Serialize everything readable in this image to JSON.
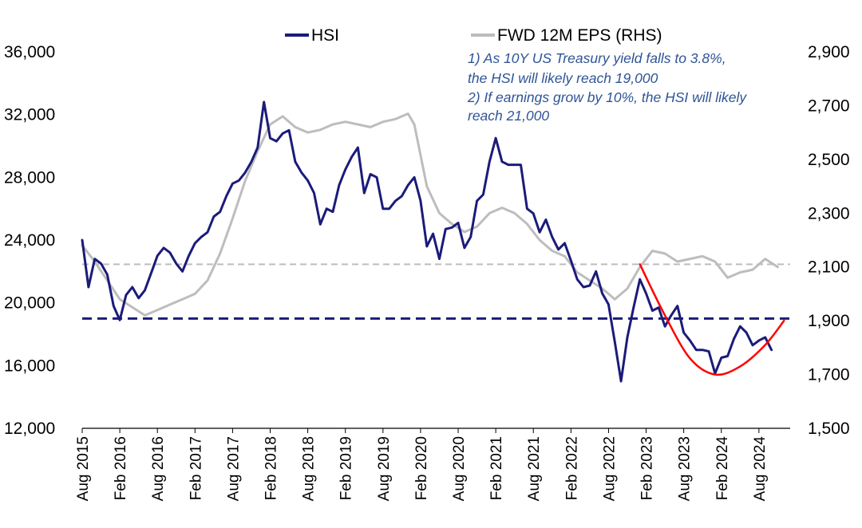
{
  "chart_data": {
    "type": "line",
    "title": "",
    "legend": {
      "placement": "top-center",
      "entries": [
        {
          "label": "HSI"
        },
        {
          "label": "FWD 12M EPS (RHS)"
        }
      ]
    },
    "left_axis": {
      "ylim": [
        12000,
        36000
      ],
      "tick_labels": [
        "36,000",
        "32,000",
        "28,000",
        "24,000",
        "20,000",
        "16,000",
        "12,000"
      ]
    },
    "right_axis": {
      "ylim": [
        1500,
        2900
      ],
      "tick_labels": [
        "2,900",
        "2,700",
        "2,500",
        "2,300",
        "2,100",
        "1,900",
        "1,700",
        "1,500"
      ]
    },
    "x_axis": {
      "range": [
        "2015-08-01",
        "2024-12-31"
      ],
      "tick_labels": [
        "Aug 2015",
        "Feb 2016",
        "Aug 2016",
        "Feb 2017",
        "Aug 2017",
        "Feb 2018",
        "Aug 2018",
        "Feb 2019",
        "Aug 2019",
        "Feb 2020",
        "Aug 2020",
        "Feb 2021",
        "Aug 2021",
        "Feb 2022",
        "Aug 2022",
        "Feb 2023",
        "Aug 2023",
        "Feb 2024",
        "Aug 2024"
      ]
    },
    "series": [
      {
        "name": "HSI",
        "axis": "left",
        "color": "#1b1b7a",
        "x": [
          "2015-08",
          "2015-09",
          "2015-10",
          "2015-11",
          "2015-12",
          "2016-01",
          "2016-02",
          "2016-03",
          "2016-04",
          "2016-05",
          "2016-06",
          "2016-07",
          "2016-08",
          "2016-09",
          "2016-10",
          "2016-11",
          "2016-12",
          "2017-01",
          "2017-02",
          "2017-03",
          "2017-04",
          "2017-05",
          "2017-06",
          "2017-07",
          "2017-08",
          "2017-09",
          "2017-10",
          "2017-11",
          "2017-12",
          "2018-01",
          "2018-02",
          "2018-03",
          "2018-04",
          "2018-05",
          "2018-06",
          "2018-07",
          "2018-08",
          "2018-09",
          "2018-10",
          "2018-11",
          "2018-12",
          "2019-01",
          "2019-02",
          "2019-03",
          "2019-04",
          "2019-05",
          "2019-06",
          "2019-07",
          "2019-08",
          "2019-09",
          "2019-10",
          "2019-11",
          "2019-12",
          "2020-01",
          "2020-02",
          "2020-03",
          "2020-04",
          "2020-05",
          "2020-06",
          "2020-07",
          "2020-08",
          "2020-09",
          "2020-10",
          "2020-11",
          "2020-12",
          "2021-01",
          "2021-02",
          "2021-03",
          "2021-04",
          "2021-05",
          "2021-06",
          "2021-07",
          "2021-08",
          "2021-09",
          "2021-10",
          "2021-11",
          "2021-12",
          "2022-01",
          "2022-02",
          "2022-03",
          "2022-04",
          "2022-05",
          "2022-06",
          "2022-07",
          "2022-08",
          "2022-09",
          "2022-10",
          "2022-11",
          "2022-12",
          "2023-01",
          "2023-02",
          "2023-03",
          "2023-04",
          "2023-05",
          "2023-06",
          "2023-07",
          "2023-08",
          "2023-09",
          "2023-10",
          "2023-11",
          "2023-12",
          "2024-01",
          "2024-02",
          "2024-03",
          "2024-04",
          "2024-05",
          "2024-06",
          "2024-07",
          "2024-08",
          "2024-09",
          "2024-10"
        ],
        "values": [
          24000,
          21000,
          22800,
          22500,
          21800,
          19800,
          18900,
          20500,
          21000,
          20300,
          20800,
          21900,
          23000,
          23500,
          23200,
          22500,
          22000,
          23000,
          23800,
          24200,
          24500,
          25500,
          25800,
          26800,
          27600,
          27800,
          28300,
          29000,
          29900,
          32800,
          30500,
          30300,
          30800,
          31000,
          29000,
          28300,
          27800,
          27000,
          25000,
          26000,
          25800,
          27500,
          28500,
          29300,
          29900,
          27000,
          28200,
          28000,
          26000,
          26000,
          26500,
          26800,
          27500,
          28000,
          26500,
          23600,
          24400,
          22800,
          24700,
          24800,
          25100,
          23500,
          24200,
          26500,
          26900,
          29000,
          30500,
          29000,
          28800,
          28800,
          28800,
          26000,
          25700,
          24500,
          25300,
          24200,
          23400,
          23800,
          22700,
          21500,
          21000,
          21100,
          22000,
          20600,
          19900,
          17500,
          15000,
          17800,
          19700,
          21500,
          20600,
          19500,
          19700,
          18500,
          19200,
          19800,
          18100,
          17600,
          17000,
          17000,
          16900,
          15500,
          16500,
          16600,
          17700,
          18500,
          18100,
          17300,
          17600,
          17800,
          17000
        ]
      },
      {
        "name": "FWD 12M EPS (RHS)",
        "axis": "right",
        "color": "#bdbdbd",
        "x": [
          "2015-08",
          "2015-10",
          "2015-12",
          "2016-02",
          "2016-04",
          "2016-06",
          "2016-08",
          "2016-10",
          "2016-12",
          "2017-02",
          "2017-04",
          "2017-06",
          "2017-08",
          "2017-10",
          "2017-12",
          "2018-02",
          "2018-04",
          "2018-06",
          "2018-08",
          "2018-10",
          "2018-12",
          "2019-02",
          "2019-04",
          "2019-06",
          "2019-08",
          "2019-10",
          "2019-12",
          "2020-01",
          "2020-03",
          "2020-05",
          "2020-07",
          "2020-09",
          "2020-11",
          "2021-01",
          "2021-03",
          "2021-05",
          "2021-07",
          "2021-09",
          "2021-11",
          "2022-01",
          "2022-03",
          "2022-05",
          "2022-07",
          "2022-09",
          "2022-11",
          "2023-01",
          "2023-03",
          "2023-05",
          "2023-07",
          "2023-09",
          "2023-11",
          "2024-01",
          "2024-03",
          "2024-05",
          "2024-07",
          "2024-09",
          "2024-11"
        ],
        "values": [
          2180,
          2120,
          2050,
          1980,
          1950,
          1920,
          1940,
          1960,
          1980,
          2000,
          2050,
          2150,
          2280,
          2420,
          2530,
          2630,
          2660,
          2620,
          2600,
          2610,
          2630,
          2640,
          2630,
          2620,
          2640,
          2650,
          2670,
          2630,
          2400,
          2300,
          2260,
          2230,
          2250,
          2300,
          2320,
          2300,
          2260,
          2200,
          2160,
          2140,
          2080,
          2050,
          2020,
          1980,
          2020,
          2100,
          2160,
          2150,
          2120,
          2130,
          2140,
          2120,
          2060,
          2080,
          2090,
          2130,
          2100
        ]
      },
      {
        "name": "",
        "axis": "right",
        "color": "#ff0000",
        "style": "projection",
        "x": [
          "2023-01",
          "2023-05",
          "2023-09",
          "2024-01",
          "2024-05",
          "2024-09",
          "2024-12"
        ],
        "values": [
          2110,
          1920,
          1760,
          1700,
          1730,
          1810,
          1900
        ]
      }
    ],
    "reference_lines": [
      {
        "axis": "left",
        "value": 19000,
        "color": "#1b1b7a",
        "style": "dashed"
      },
      {
        "axis": "right",
        "value": 2110,
        "color": "#bdbdbd",
        "style": "dashed"
      }
    ],
    "annotations": [
      "1) As 10Y US Treasury yield falls to 3.8%,",
      "the HSI will likely reach 19,000",
      "2) If earnings grow by 10%, the HSI will likely",
      " reach 21,000"
    ],
    "grid": false
  }
}
